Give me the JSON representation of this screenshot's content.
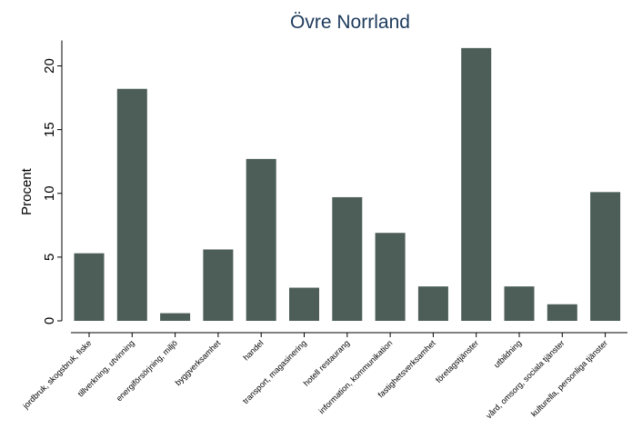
{
  "chart_data": {
    "type": "bar",
    "title": "Övre Norrland",
    "xlabel": "",
    "ylabel": "Procent",
    "ylim": [
      0,
      22
    ],
    "yticks": [
      0,
      5,
      10,
      15,
      20
    ],
    "grid": false,
    "categories": [
      "jordbruk, skogsbruk, fiske",
      "tillverkning, utvinning",
      "energiförsörjning, miljö",
      "byggverksamhet",
      "handel",
      "transport, magasinering",
      "hotell restaurang",
      "information, kommunikation",
      "fastighetsverksamhet",
      "företagstjänster",
      "utbildning",
      "vård, omsorg, sociala tjänster",
      "kulturella, personliga tjänster"
    ],
    "values": [
      5.3,
      18.2,
      0.6,
      5.6,
      12.7,
      2.6,
      9.7,
      6.9,
      2.7,
      21.4,
      2.7,
      1.3,
      10.1
    ],
    "colors": {
      "bar": "#4d5e58",
      "title": "#1d3a5c"
    }
  }
}
